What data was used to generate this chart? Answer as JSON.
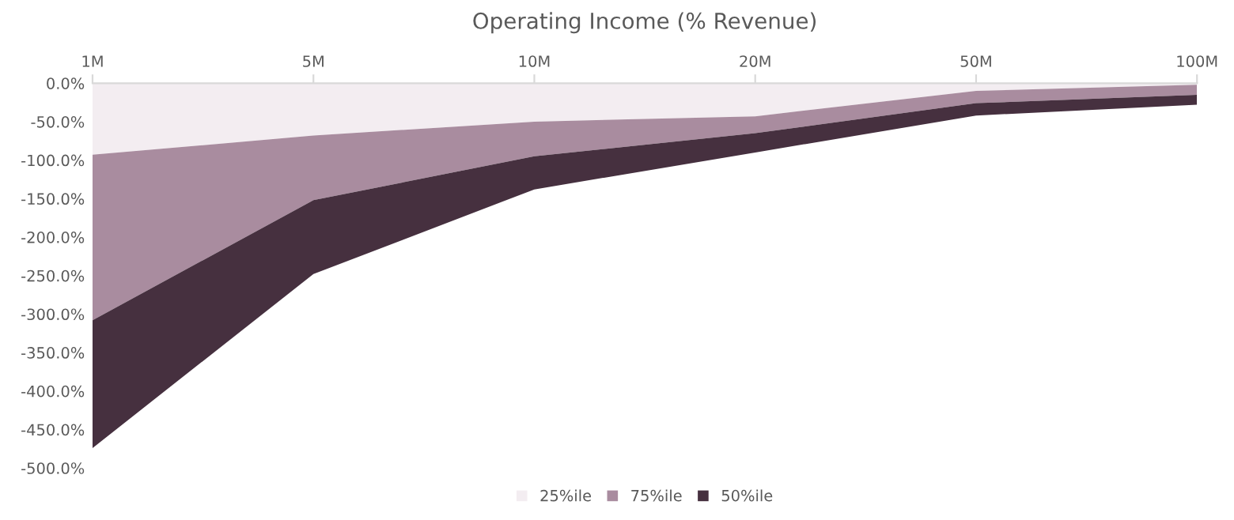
{
  "chart_data": {
    "type": "area",
    "title": "Operating Income (% Revenue)",
    "stacked": true,
    "categories": [
      "1M",
      "5M",
      "10M",
      "20M",
      "50M",
      "100M"
    ],
    "series": [
      {
        "name": "25%ile",
        "color": "#f3edf1",
        "values": [
          -93,
          -68,
          -50,
          -43,
          -10,
          -2
        ]
      },
      {
        "name": "75%ile",
        "color": "#a98c9f",
        "values": [
          -215,
          -84,
          -45,
          -22,
          -16,
          -13
        ]
      },
      {
        "name": "50%ile",
        "color": "#46303f",
        "values": [
          -166,
          -96,
          -43,
          -25,
          -16,
          -13
        ]
      }
    ],
    "ylim": [
      -500,
      0
    ],
    "yticks": [
      {
        "value": -500,
        "label": "-500.0%"
      },
      {
        "value": -450,
        "label": "-450.0%"
      },
      {
        "value": -400,
        "label": "-400.0%"
      },
      {
        "value": -350,
        "label": "-350.0%"
      },
      {
        "value": -300,
        "label": "-300.0%"
      },
      {
        "value": -250,
        "label": "-250.0%"
      },
      {
        "value": -200,
        "label": "-200.0%"
      },
      {
        "value": -150,
        "label": "-150.0%"
      },
      {
        "value": -100,
        "label": "-100.0%"
      },
      {
        "value": -50,
        "label": "-50.0%"
      },
      {
        "value": 0,
        "label": "0.0%"
      }
    ],
    "grid": false,
    "legend": "bottom"
  }
}
